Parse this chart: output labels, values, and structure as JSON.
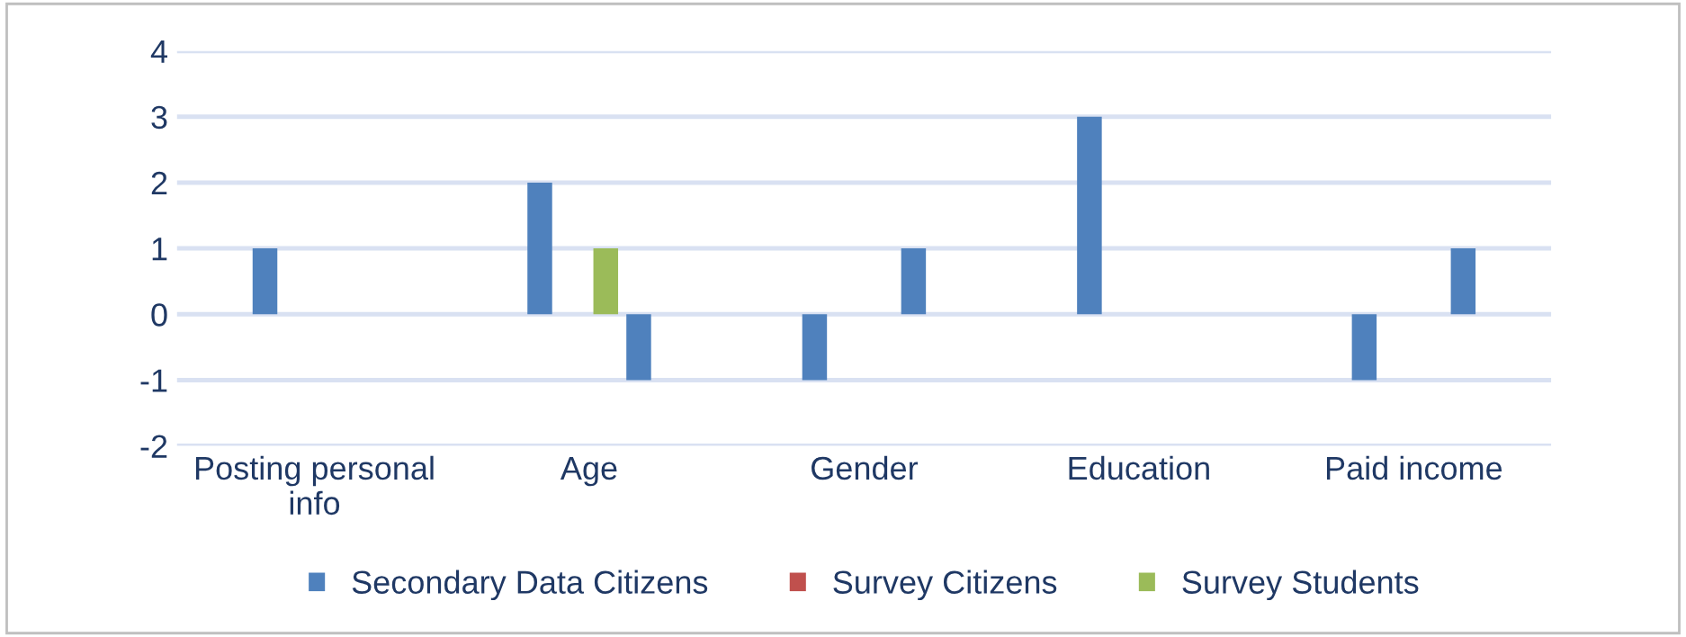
{
  "chart_data": {
    "type": "bar",
    "categories": [
      "Posting personal info",
      "Age",
      "Gender",
      "Education",
      "Paid income"
    ],
    "series": [
      {
        "name": "Secondary Data Citizens",
        "color": "#4f81bd",
        "values": [
          1,
          2,
          -1,
          3,
          -1
        ]
      },
      {
        "name": "Survey Citizens",
        "color": "#c0504d",
        "values": [
          null,
          null,
          null,
          null,
          null
        ]
      },
      {
        "name": "Survey Students",
        "color": "#9bbb59",
        "values": [
          null,
          1,
          null,
          null,
          null
        ]
      },
      {
        "color": "#4f81bd",
        "values": [
          null,
          -1,
          1,
          null,
          1
        ]
      }
    ],
    "ylim": [
      -2,
      4
    ],
    "yticks": [
      -2,
      -1,
      0,
      1,
      2,
      3,
      4
    ],
    "grid": "y",
    "legend": "bottom"
  }
}
